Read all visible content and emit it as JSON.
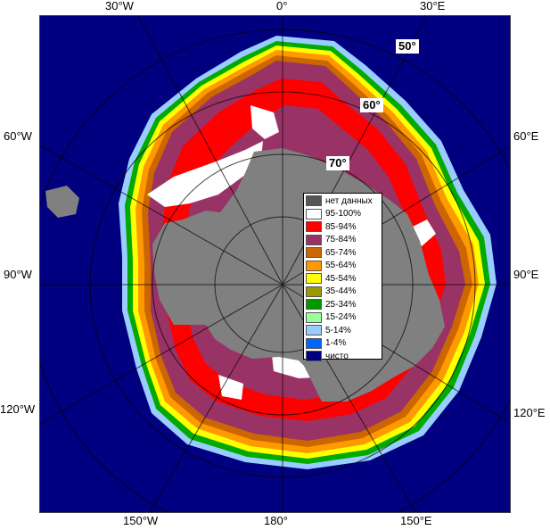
{
  "map": {
    "edge_labels": {
      "top": [
        "30°W",
        "0°",
        "30°E"
      ],
      "left": [
        "60°W",
        "90°W",
        "120°W"
      ],
      "right": [
        "60°E",
        "90°E",
        "120°E"
      ],
      "bottom": [
        "150°W",
        "180°",
        "150°E"
      ]
    },
    "lat_labels": [
      "50°",
      "60°",
      "70°"
    ],
    "colors": {
      "ocean_open": "#000080",
      "land": "#808080",
      "no_data": "#505050",
      "grid": "#c8c8c8"
    }
  },
  "legend": {
    "items": [
      {
        "label": "нет данных",
        "color": "#555555"
      },
      {
        "label": "95-100%",
        "color": "#ffffff"
      },
      {
        "label": "85-94%",
        "color": "#ff0000"
      },
      {
        "label": "75-84%",
        "color": "#993366"
      },
      {
        "label": "65-74%",
        "color": "#cc6600"
      },
      {
        "label": "55-64%",
        "color": "#ff9900"
      },
      {
        "label": "45-54%",
        "color": "#ffff00"
      },
      {
        "label": "35-44%",
        "color": "#999900"
      },
      {
        "label": "25-34%",
        "color": "#009900"
      },
      {
        "label": "15-24%",
        "color": "#99ff99"
      },
      {
        "label": "5-14%",
        "color": "#99ccff"
      },
      {
        "label": "1-4%",
        "color": "#0066ff"
      },
      {
        "label": "чисто",
        "color": "#000080"
      }
    ]
  }
}
